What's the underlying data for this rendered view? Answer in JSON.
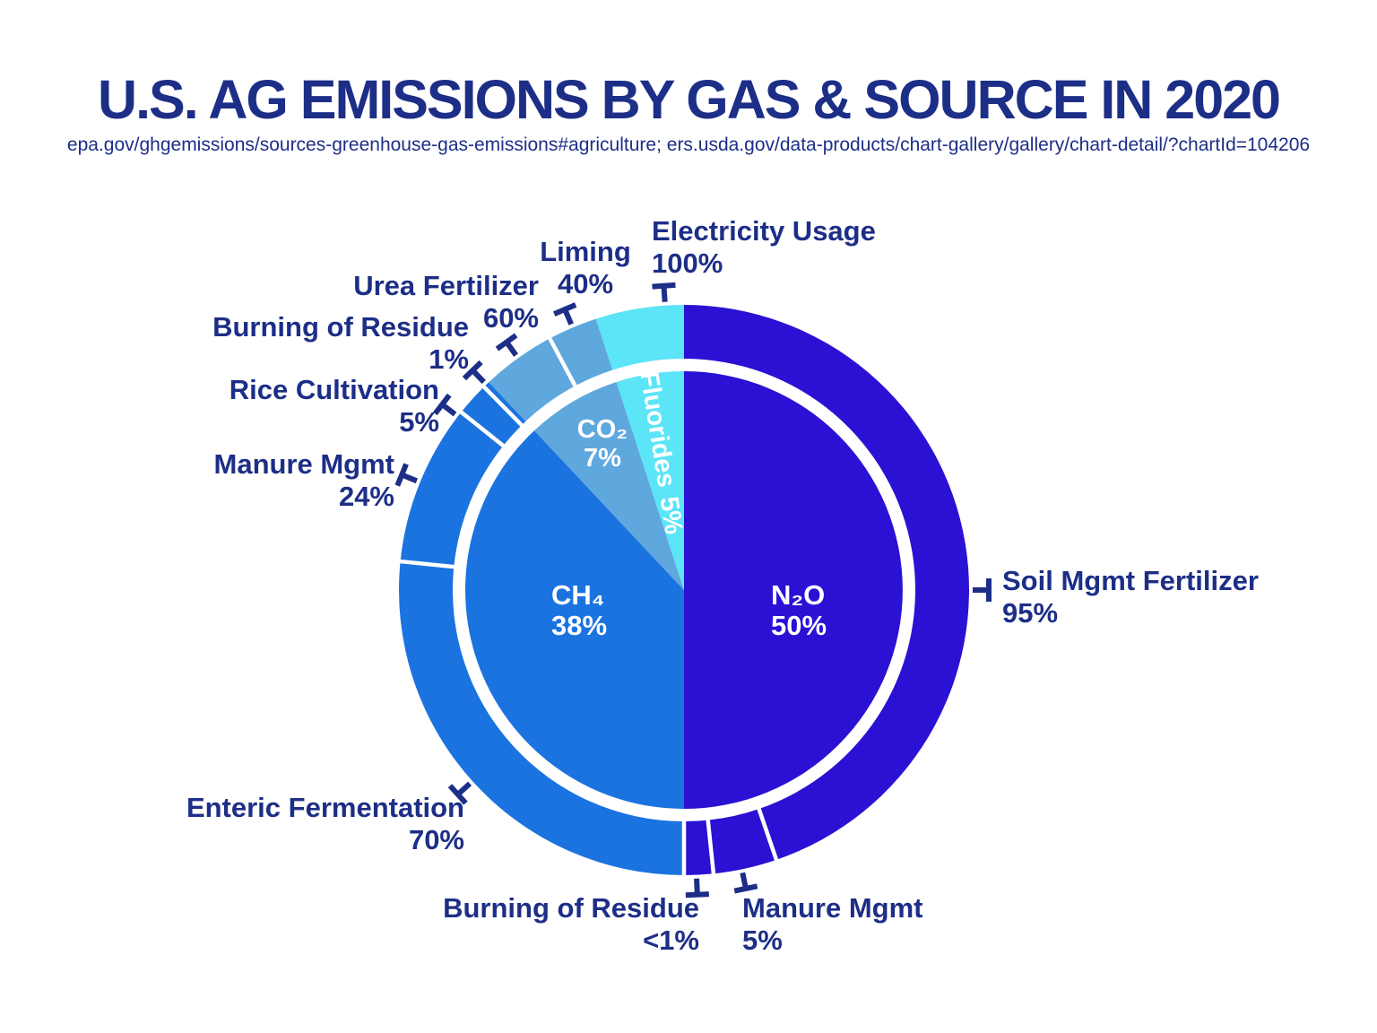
{
  "title": "U.S. AG EMISSIONS BY GAS & SOURCE IN 2020",
  "subtitle": "epa.gov/ghgemissions/sources-greenhouse-gas-emissions#agriculture; ers.usda.gov/data-products/chart-gallery/gallery/chart-detail/?chartId=104206",
  "colors": {
    "text_navy": "#1d2e87",
    "n2o_blue": "#2b11d4",
    "ch4_blue": "#1b73e0",
    "co2_blue": "#5ea8de",
    "fluorides_cyan": "#5ce4f7",
    "background": "#ffffff",
    "inner_label_text": "#ffffff"
  },
  "chart_data": {
    "type": "pie",
    "title": "U.S. AG EMISSIONS BY GAS & SOURCE IN 2020",
    "subtitle": "epa.gov/ghgemissions/sources-greenhouse-gas-emissions#agriculture; ers.usda.gov/data-products/chart-gallery/gallery/chart-detail/?chartId=104206",
    "layout_hint": "double-ring donut: inner pie = share of total ag emissions by gas; outer ring = source breakdown within each gas; starts at 12 o'clock, clockwise",
    "inner_ring_gases": [
      {
        "id": "n2o",
        "label": "N₂O",
        "pct_label": "50%",
        "value": 50,
        "color": "#2b11d4"
      },
      {
        "id": "ch4",
        "label": "CH₄",
        "pct_label": "38%",
        "value": 38,
        "color": "#1b73e0"
      },
      {
        "id": "co2",
        "label": "CO₂",
        "pct_label": "7%",
        "value": 7,
        "color": "#5ea8de"
      },
      {
        "id": "fluorides",
        "label": "Fluorides",
        "pct_label": "5%",
        "value": 5,
        "color": "#5ce4f7"
      }
    ],
    "outer_ring_sources": [
      {
        "gas": "N₂O",
        "label": "Soil Mgmt Fertilizer",
        "pct_label": "95%",
        "value": 95
      },
      {
        "gas": "N₂O",
        "label": "Manure Mgmt",
        "pct_label": "5%",
        "value": 5
      },
      {
        "gas": "N₂O",
        "label": "Burning of Residue",
        "pct_label": "<1%",
        "value": 0.8
      },
      {
        "gas": "CH₄",
        "label": "Enteric Fermentation",
        "pct_label": "70%",
        "value": 70
      },
      {
        "gas": "CH₄",
        "label": "Manure Mgmt",
        "pct_label": "24%",
        "value": 24
      },
      {
        "gas": "CH₄",
        "label": "Rice Cultivation",
        "pct_label": "5%",
        "value": 5
      },
      {
        "gas": "CH₄",
        "label": "Burning of Residue",
        "pct_label": "1%",
        "value": 1
      },
      {
        "gas": "CO₂",
        "label": "Urea Fertilizer",
        "pct_label": "60%",
        "value": 60
      },
      {
        "gas": "CO₂",
        "label": "Liming",
        "pct_label": "40%",
        "value": 40
      },
      {
        "gas": "Fluorides",
        "label": "Electricity Usage",
        "pct_label": "100%",
        "value": 100
      }
    ]
  }
}
